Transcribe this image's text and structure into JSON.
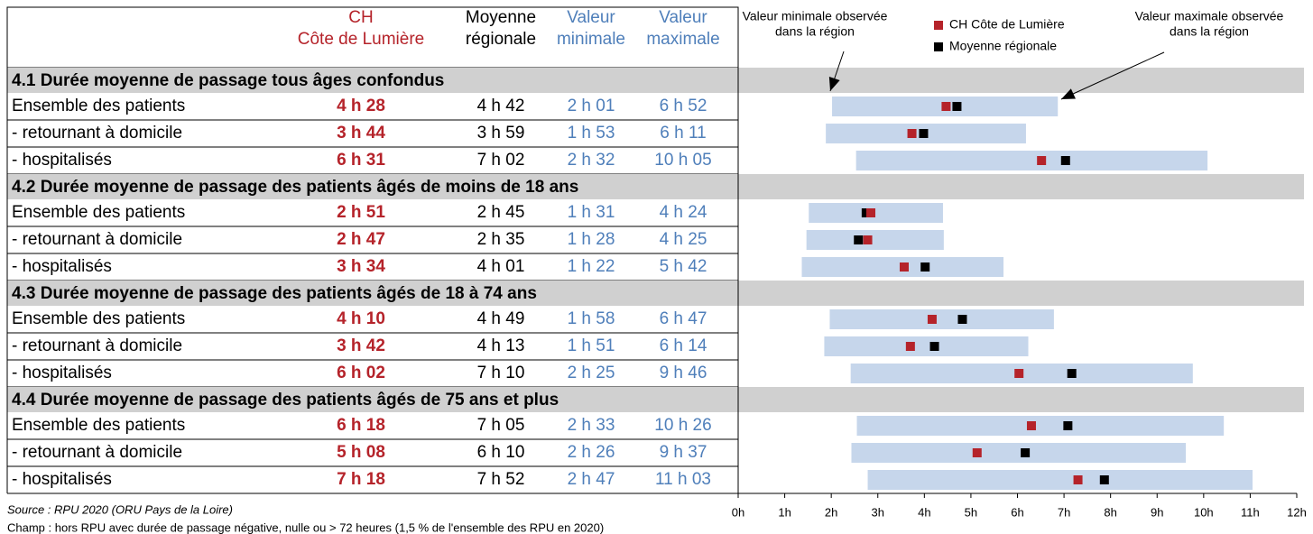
{
  "chart_data": {
    "type": "range-dot",
    "groups": [
      {
        "title": "4.1 Durée moyenne de passage tous âges confondus",
        "categories": [
          "Ensemble des patients",
          " - retournant à domicile",
          " - hospitalisés"
        ]
      },
      {
        "title": "4.2 Durée moyenne de passage des patients âgés de moins de 18 ans",
        "categories": [
          "Ensemble des patients",
          " - retournant à domicile",
          " - hospitalisés"
        ]
      },
      {
        "title": "4.3 Durée moyenne de passage des patients âgés de 18 à 74 ans",
        "categories": [
          "Ensemble des patients",
          " - retournant à domicile",
          " - hospitalisés"
        ]
      },
      {
        "title": "4.4 Durée moyenne de passage des patients âgés de 75 ans et plus",
        "categories": [
          "Ensemble des patients",
          " - retournant à domicile",
          " - hospitalisés"
        ]
      }
    ],
    "series": [
      {
        "name": "CH Côte de Lumière",
        "header": [
          "CH",
          "Côte de Lumière"
        ],
        "color": "#b5232a",
        "bold": true,
        "values": [
          4.467,
          3.733,
          6.517,
          2.85,
          2.783,
          3.567,
          4.167,
          3.7,
          6.033,
          6.3,
          5.133,
          7.3
        ],
        "value_labels": [
          "4 h 28",
          "3 h 44",
          "6 h 31",
          "2 h 51",
          "2 h 47",
          "3 h 34",
          "4 h 10",
          "3 h 42",
          "6 h 02",
          "6 h 18",
          "5 h 08",
          "7 h 18"
        ]
      },
      {
        "name": "Moyenne régionale",
        "header": [
          "Moyenne",
          "régionale"
        ],
        "color": "#000000",
        "bold": false,
        "values": [
          4.7,
          3.983,
          7.033,
          2.75,
          2.583,
          4.017,
          4.817,
          4.217,
          7.167,
          7.083,
          6.167,
          7.867
        ],
        "value_labels": [
          "4 h 42",
          "3 h 59",
          "7 h 02",
          "2 h 45",
          "2 h 35",
          "4 h 01",
          "4 h 49",
          "4 h 13",
          "7 h 10",
          "7 h 05",
          "6 h 10",
          "7 h 52"
        ]
      },
      {
        "header": [
          "Valeur",
          "minimale"
        ],
        "color": "#4f7fba",
        "bold": false,
        "values": [
          2.017,
          1.883,
          2.533,
          1.517,
          1.467,
          1.367,
          1.967,
          1.85,
          2.417,
          2.55,
          2.433,
          2.783
        ],
        "value_labels": [
          "2 h 01",
          "1 h 53",
          "2 h 32",
          "1 h 31",
          "1 h 28",
          "1 h 22",
          "1 h 58",
          "1 h 51",
          "2 h 25",
          "2 h 33",
          "2 h 26",
          "2 h 47"
        ]
      },
      {
        "header": [
          "Valeur",
          "maximale"
        ],
        "color": "#4f7fba",
        "bold": false,
        "values": [
          6.867,
          6.183,
          10.083,
          4.4,
          4.417,
          5.7,
          6.783,
          6.233,
          9.767,
          10.433,
          9.617,
          11.05
        ],
        "value_labels": [
          "6 h 52",
          "6 h 11",
          "10 h 05",
          "4 h 24",
          "4 h 25",
          "5 h 42",
          "6 h 47",
          "6 h 14",
          "9 h 46",
          "10 h 26",
          "9 h 37",
          "11 h 03"
        ]
      }
    ],
    "range_color": "#c6d6eb",
    "annotations": [
      [
        "Valeur minimale observée",
        "dans la région"
      ],
      [
        "Valeur maximale observée",
        "dans la région"
      ]
    ],
    "xlim": [
      0,
      12
    ],
    "xticks": [
      {
        "value": 0,
        "label": "0h"
      },
      {
        "value": 1,
        "label": "1h"
      },
      {
        "value": 2,
        "label": "2h"
      },
      {
        "value": 3,
        "label": "3h"
      },
      {
        "value": 4,
        "label": "4h"
      },
      {
        "value": 5,
        "label": "5h"
      },
      {
        "value": 6,
        "label": "6h"
      },
      {
        "value": 7,
        "label": "7h"
      },
      {
        "value": 8,
        "label": "8h"
      },
      {
        "value": 9,
        "label": "9h"
      },
      {
        "value": 10,
        "label": "10h"
      },
      {
        "value": 11,
        "label": "11h"
      },
      {
        "value": 12,
        "label": "12h"
      }
    ],
    "notes": [
      "Source : RPU 2020 (ORU Pays de la Loire)",
      "Champ : hors RPU avec durée de passage négative, nulle ou > 72 heures (1,5 % de l'ensemble des RPU en 2020)"
    ]
  }
}
